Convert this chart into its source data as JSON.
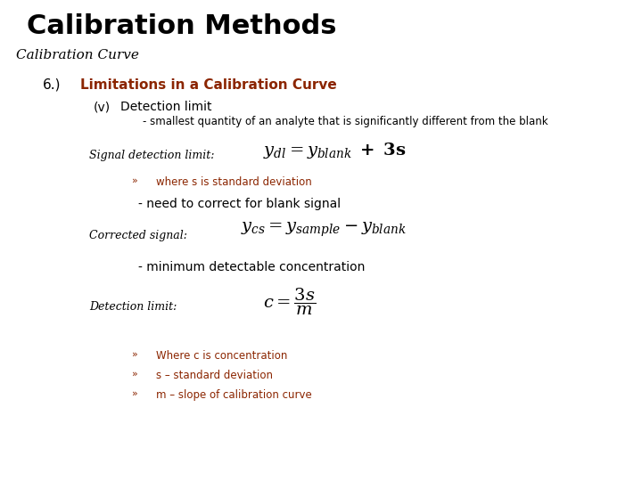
{
  "title": "Calibration Methods",
  "subtitle": "Calibration Curve",
  "heading_number": "6.)",
  "heading_text": "Limitations in a Calibration Curve",
  "heading_color": "#8B2500",
  "subheading_paren": "(v)",
  "subheading_text": "Detection limit",
  "bullet1": "- smallest quantity of an analyte that is significantly different from the blank",
  "signal_label": "Signal detection limit:",
  "arrow_note": "where s is standard deviation",
  "arrow_note_color": "#8B2500",
  "blank_correction": "- need to correct for blank signal",
  "corrected_label": "Corrected signal:",
  "min_detect": "- minimum detectable concentration",
  "detection_label": "Detection limit:",
  "bullet_items": [
    "Where c is concentration",
    "s – standard deviation",
    "m – slope of calibration curve"
  ],
  "bullet_color": "#8B2500",
  "bg_color": "#ffffff",
  "text_color": "#000000"
}
